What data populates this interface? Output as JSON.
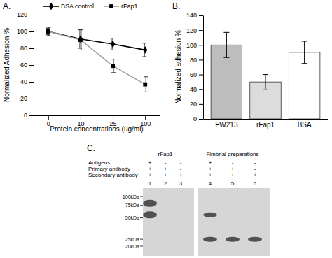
{
  "chart_data": [
    {
      "type": "line",
      "title": "A.",
      "x_label": "Protein concentrations (ug/ml)",
      "y_label": "Normalized Adhesion %",
      "categories": [
        "0",
        "10",
        "25",
        "100"
      ],
      "series": [
        {
          "name": "BSA control",
          "color": "#000000",
          "marker": "diamond",
          "values": [
            100,
            91,
            85,
            78
          ],
          "errors": [
            4,
            11,
            7,
            8
          ]
        },
        {
          "name": "rFap1",
          "color": "#a0a0a0",
          "marker": "square",
          "values": [
            100,
            90,
            59,
            37
          ],
          "errors": [
            5,
            12,
            8,
            9
          ]
        }
      ],
      "ylim": [
        0,
        120
      ],
      "yticks": [
        0,
        20,
        40,
        60,
        80,
        100,
        120
      ],
      "legend": "top"
    },
    {
      "type": "bar",
      "title": "B.",
      "y_label": "Normalized adhesion %",
      "categories": [
        "FW213",
        "rFap1",
        "BSA"
      ],
      "values": [
        100,
        50,
        90
      ],
      "errors": [
        17,
        10,
        15
      ],
      "colors": [
        "#bdbdbd",
        "#dcdcdc",
        "#ffffff"
      ],
      "ylim": [
        0,
        140
      ],
      "yticks": [
        0,
        20,
        40,
        60,
        80,
        100,
        120,
        140
      ]
    }
  ],
  "blot": {
    "title": "C.",
    "groups": [
      "rFap1",
      "Fimbrial preparations"
    ],
    "rows": [
      {
        "label": "Antigens",
        "signs": [
          "+",
          "-",
          "-",
          "+",
          "-",
          "-"
        ]
      },
      {
        "label": "Primary antibody",
        "signs": [
          "+",
          "+",
          "-",
          "+",
          "+",
          "-"
        ]
      },
      {
        "label": "Secondary antibody",
        "signs": [
          "+",
          "+",
          "+",
          "+",
          "+",
          "+"
        ]
      }
    ],
    "lanes": [
      1,
      2,
      3,
      4,
      5,
      6
    ],
    "markers": [
      {
        "value": 100,
        "label": "100kDa"
      },
      {
        "value": 75,
        "label": "75kDa"
      },
      {
        "value": 50,
        "label": "50kDa"
      },
      {
        "value": 25,
        "label": "25kDa"
      },
      {
        "value": 20,
        "label": "20kDa"
      }
    ],
    "bands": [
      [
        80,
        55
      ],
      [],
      [],
      [
        55,
        25
      ],
      [
        25
      ],
      [
        25
      ]
    ]
  }
}
